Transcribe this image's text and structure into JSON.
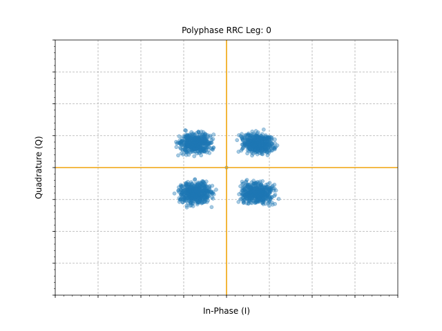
{
  "chart_data": {
    "type": "scatter",
    "title": "Polyphase RRC Leg: 0",
    "xlabel": "In-Phase (I)",
    "ylabel": "Quadrature (Q)",
    "xlim": [
      -1.0,
      1.0
    ],
    "ylim": [
      -1.0,
      1.0
    ],
    "tick_labels_shown": false,
    "grid": true,
    "grid_style": "dashed",
    "legend": "none",
    "colors": {
      "points": "#1f77b4",
      "axes_lines": "#f0a30a",
      "grid": "#b0b0b0"
    },
    "reference_lines": [
      {
        "orientation": "vertical",
        "x": 0
      },
      {
        "orientation": "horizontal",
        "y": 0
      }
    ],
    "major_ticks": {
      "x": [
        -1.0,
        -0.75,
        -0.5,
        -0.25,
        0.0,
        0.25,
        0.5,
        0.75,
        1.0
      ],
      "y": [
        -1.0,
        -0.75,
        -0.5,
        -0.25,
        0.0,
        0.25,
        0.5,
        0.75,
        1.0
      ]
    },
    "clusters": [
      {
        "name": "I+/Q+",
        "x_range": [
          0.03,
          0.33
        ],
        "y_range": [
          0.07,
          0.31
        ]
      },
      {
        "name": "I-/Q+",
        "x_range": [
          -0.33,
          -0.03
        ],
        "y_range": [
          0.07,
          0.31
        ]
      },
      {
        "name": "I-/Q-",
        "x_range": [
          -0.33,
          -0.03
        ],
        "y_range": [
          -0.33,
          -0.07
        ]
      },
      {
        "name": "I+/Q-",
        "x_range": [
          0.03,
          0.33
        ],
        "y_range": [
          -0.33,
          -0.07
        ]
      }
    ],
    "points_per_cluster": 500,
    "center_point": {
      "x": 0.0,
      "y": 0.0
    }
  }
}
